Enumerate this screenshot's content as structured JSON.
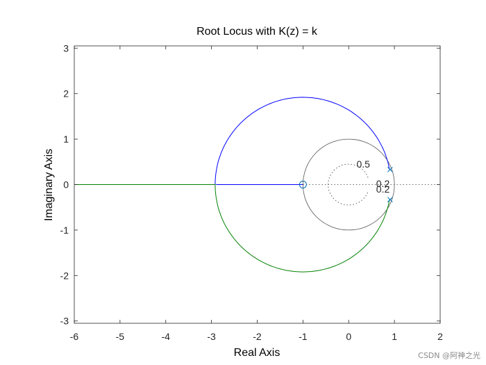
{
  "chart_data": {
    "type": "line",
    "title": "Root Locus with K(z) = k",
    "xlabel": "Real Axis",
    "ylabel": "Imaginary Axis",
    "xlim": [
      -6,
      2
    ],
    "ylim": [
      -3.05,
      3.05
    ],
    "xticks": [
      -6,
      -5,
      -4,
      -3,
      -2,
      -1,
      0,
      1,
      2
    ],
    "yticks": [
      -3,
      -2,
      -1,
      0,
      1,
      2,
      3
    ],
    "grid": false,
    "open_loop_poles": [
      [
        0.905,
        0.33
      ],
      [
        0.905,
        -0.33
      ]
    ],
    "open_loop_zeros": [
      [
        -1,
        0
      ]
    ],
    "breakaway_point": -2.9,
    "locus_circle": {
      "center": [
        -1,
        0
      ],
      "radius": 1.92
    },
    "unit_circle": {
      "center": [
        0,
        0
      ],
      "radius": 1
    },
    "damping_grid_labels": [
      "0.5",
      "0.2",
      "0.2"
    ],
    "series": [
      {
        "color": "#0000ff",
        "branch": "upper",
        "from": [
          0.905,
          0.33
        ],
        "to": [
          -6,
          0
        ]
      },
      {
        "color": "#008000",
        "branch": "lower",
        "from": [
          0.905,
          -0.33
        ],
        "to": [
          -6,
          0
        ]
      }
    ]
  },
  "watermark": "CSDN @阿神之光"
}
